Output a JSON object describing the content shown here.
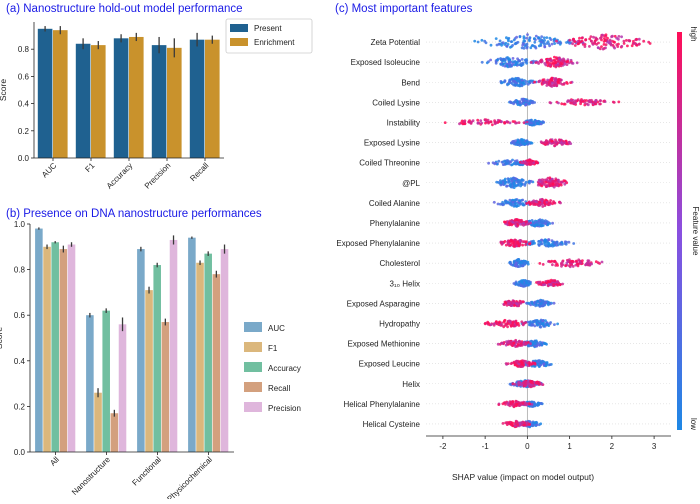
{
  "chart_data": [
    {
      "type": "bar",
      "panel": "a",
      "title": "(a) Nanostructure hold-out model performance",
      "categories": [
        "AUC",
        "F1",
        "Accuracy",
        "Precision",
        "Recall"
      ],
      "series": [
        {
          "name": "Present",
          "color": "#1f6190",
          "values": [
            0.95,
            0.84,
            0.88,
            0.83,
            0.87
          ],
          "errors": [
            0.02,
            0.04,
            0.03,
            0.06,
            0.05
          ]
        },
        {
          "name": "Enrichment",
          "color": "#c9922c",
          "values": [
            0.94,
            0.83,
            0.89,
            0.81,
            0.87
          ],
          "errors": [
            0.03,
            0.03,
            0.03,
            0.07,
            0.03
          ]
        }
      ],
      "xlabel": "",
      "ylabel": "Score",
      "ylim": [
        0,
        1.0
      ],
      "yticks": [
        "0.0",
        "0.2",
        "0.4",
        "0.6",
        "0.8"
      ],
      "legend": "right"
    },
    {
      "type": "bar",
      "panel": "b",
      "title": "(b) Presence on DNA nanostructure performances",
      "categories": [
        "All",
        "Nanostructure",
        "Functional",
        "Physicochemical"
      ],
      "series": [
        {
          "name": "AUC",
          "color": "#7aa9c9",
          "values": [
            0.98,
            0.6,
            0.89,
            0.94
          ],
          "errors": [
            0.005,
            0.01,
            0.01,
            0.005
          ]
        },
        {
          "name": "F1",
          "color": "#dbb77c",
          "values": [
            0.9,
            0.26,
            0.71,
            0.83
          ],
          "errors": [
            0.01,
            0.02,
            0.015,
            0.01
          ]
        },
        {
          "name": "Accuracy",
          "color": "#71bfa0",
          "values": [
            0.92,
            0.62,
            0.82,
            0.87
          ],
          "errors": [
            0.005,
            0.01,
            0.01,
            0.01
          ]
        },
        {
          "name": "Recall",
          "color": "#d3a07e",
          "values": [
            0.89,
            0.17,
            0.57,
            0.78
          ],
          "errors": [
            0.015,
            0.015,
            0.015,
            0.015
          ]
        },
        {
          "name": "Precision",
          "color": "#dfb6dc",
          "values": [
            0.91,
            0.56,
            0.93,
            0.89
          ],
          "errors": [
            0.01,
            0.03,
            0.02,
            0.02
          ]
        }
      ],
      "xlabel": "",
      "ylabel": "Score",
      "ylim": [
        0,
        1.0
      ],
      "yticks": [
        "0.0",
        "0.2",
        "0.4",
        "0.6",
        "0.8",
        "1.0"
      ],
      "legend": "right"
    },
    {
      "type": "scatter",
      "subtype": "shap-beeswarm",
      "panel": "c",
      "title": "(c) Most important features",
      "xlabel": "SHAP value (impact on model output)",
      "xlim": [
        -2.4,
        3.4
      ],
      "xticks": [
        "-2",
        "-1",
        "0",
        "1",
        "2",
        "3"
      ],
      "colorbar": {
        "label": "Feature value",
        "high": "high",
        "low": "low",
        "low_color": "#1e88e5",
        "high_color": "#ff0d57"
      },
      "features": [
        {
          "name": "Zeta Potential",
          "min": -1.5,
          "max": 3.2,
          "low_spread": [
            -1.5,
            1.5
          ],
          "high_spread": [
            0.5,
            3.2
          ],
          "density": 1.0
        },
        {
          "name": "Exposed Isoleucine",
          "min": -1.2,
          "max": 1.3,
          "low_spread": [
            -1.2,
            0.4
          ],
          "high_spread": [
            0.0,
            1.3
          ],
          "density": 0.7
        },
        {
          "name": "Bend",
          "min": -0.8,
          "max": 1.1,
          "low_spread": [
            -0.8,
            0.3
          ],
          "high_spread": [
            0.1,
            1.1
          ],
          "density": 0.6
        },
        {
          "name": "Coiled Lysine",
          "min": -0.5,
          "max": 2.3,
          "low_spread": [
            -0.5,
            0.3
          ],
          "high_spread": [
            0.2,
            2.3
          ],
          "density": 0.45
        },
        {
          "name": "Instability",
          "min": -2.2,
          "max": 0.5,
          "low_spread": [
            -0.2,
            0.5
          ],
          "high_spread": [
            -2.2,
            0.3
          ],
          "density": 0.4
        },
        {
          "name": "Exposed Lysine",
          "min": -0.5,
          "max": 1.2,
          "low_spread": [
            -0.5,
            0.2
          ],
          "high_spread": [
            0.1,
            1.2
          ],
          "density": 0.45
        },
        {
          "name": "Coiled Threonine",
          "min": -1.1,
          "max": 0.4,
          "low_spread": [
            -1.1,
            0.4
          ],
          "high_spread": [
            -0.2,
            0.3
          ],
          "density": 0.4
        },
        {
          "name": "@PL",
          "min": -1.0,
          "max": 1.1,
          "low_spread": [
            -1.0,
            0.3
          ],
          "high_spread": [
            0.0,
            1.1
          ],
          "density": 0.7
        },
        {
          "name": "Coiled Alanine",
          "min": -0.9,
          "max": 0.9,
          "low_spread": [
            -0.9,
            0.4
          ],
          "high_spread": [
            -0.2,
            0.9
          ],
          "density": 0.5
        },
        {
          "name": "Phenylalanine",
          "min": -0.7,
          "max": 0.7,
          "low_spread": [
            -0.2,
            0.7
          ],
          "high_spread": [
            -0.7,
            0.2
          ],
          "density": 0.5
        },
        {
          "name": "Exposed Phenylalanine",
          "min": -0.8,
          "max": 1.3,
          "low_spread": [
            -0.3,
            1.3
          ],
          "high_spread": [
            -0.8,
            0.2
          ],
          "density": 0.5
        },
        {
          "name": "Cholesterol",
          "min": -0.5,
          "max": 2.1,
          "low_spread": [
            -0.5,
            0.1
          ],
          "high_spread": [
            0.0,
            2.1
          ],
          "density": 0.55
        },
        {
          "name": "3₁₀ Helix",
          "min": -0.4,
          "max": 1.0,
          "low_spread": [
            -0.4,
            0.2
          ],
          "high_spread": [
            0.1,
            1.0
          ],
          "density": 0.45
        },
        {
          "name": "Exposed Asparagine",
          "min": -0.7,
          "max": 0.7,
          "low_spread": [
            -0.1,
            0.7
          ],
          "high_spread": [
            -0.7,
            0.1
          ],
          "density": 0.45
        },
        {
          "name": "Hydropathy",
          "min": -1.2,
          "max": 0.8,
          "low_spread": [
            -0.2,
            0.8
          ],
          "high_spread": [
            -1.2,
            0.2
          ],
          "density": 0.5
        },
        {
          "name": "Exposed Methionine",
          "min": -0.8,
          "max": 0.6,
          "low_spread": [
            -0.3,
            0.6
          ],
          "high_spread": [
            -0.8,
            0.2
          ],
          "density": 0.45
        },
        {
          "name": "Exposed Leucine",
          "min": -0.6,
          "max": 0.8,
          "low_spread": [
            -0.3,
            0.8
          ],
          "high_spread": [
            -0.6,
            0.3
          ],
          "density": 0.45
        },
        {
          "name": "Helix",
          "min": -0.6,
          "max": 0.5,
          "low_spread": [
            -0.6,
            0.5
          ],
          "high_spread": [
            -0.4,
            0.5
          ],
          "density": 0.45
        },
        {
          "name": "Helical Phenylalanine",
          "min": -0.8,
          "max": 0.4,
          "low_spread": [
            -0.2,
            0.4
          ],
          "high_spread": [
            -0.8,
            0.2
          ],
          "density": 0.4
        },
        {
          "name": "Helical Cysteine",
          "min": -0.7,
          "max": 0.4,
          "low_spread": [
            -0.3,
            0.4
          ],
          "high_spread": [
            -0.7,
            0.2
          ],
          "density": 0.4
        }
      ]
    }
  ]
}
